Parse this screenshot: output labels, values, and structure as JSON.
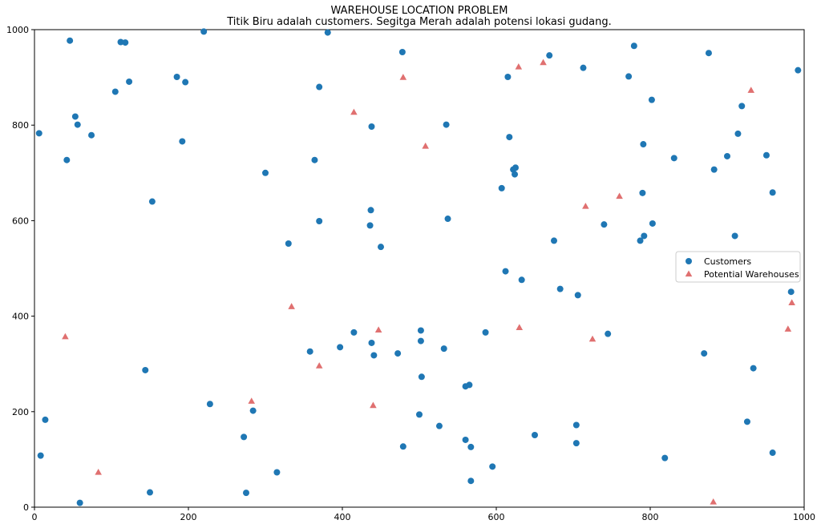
{
  "chart_data": {
    "type": "scatter",
    "title": "WAREHOUSE LOCATION PROBLEM",
    "subtitle": "Titik Biru adalah customers. Segitga Merah adalah potensi lokasi gudang.",
    "xlabel": "",
    "ylabel": "",
    "xlim": [
      0,
      1000
    ],
    "ylim": [
      0,
      1000
    ],
    "xticks": [
      "0",
      "200",
      "400",
      "600",
      "800",
      "1000"
    ],
    "yticks": [
      "0",
      "200",
      "400",
      "600",
      "800",
      "1000"
    ],
    "grid": false,
    "legend_position": "center-right",
    "series": [
      {
        "name": "Customers",
        "marker": "circle",
        "color": "#1f77b4",
        "points": [
          [
            8,
            108
          ],
          [
            14,
            183
          ],
          [
            6,
            783
          ],
          [
            46,
            977
          ],
          [
            42,
            727
          ],
          [
            53,
            818
          ],
          [
            56,
            801
          ],
          [
            74,
            779
          ],
          [
            59,
            9
          ],
          [
            105,
            870
          ],
          [
            112,
            974
          ],
          [
            118,
            973
          ],
          [
            123,
            891
          ],
          [
            144,
            287
          ],
          [
            150,
            31
          ],
          [
            153,
            640
          ],
          [
            185,
            901
          ],
          [
            192,
            766
          ],
          [
            196,
            890
          ],
          [
            220,
            996
          ],
          [
            228,
            216
          ],
          [
            272,
            147
          ],
          [
            275,
            30
          ],
          [
            284,
            202
          ],
          [
            300,
            700
          ],
          [
            315,
            73
          ],
          [
            330,
            552
          ],
          [
            358,
            326
          ],
          [
            364,
            727
          ],
          [
            370,
            599
          ],
          [
            370,
            880
          ],
          [
            381,
            994
          ],
          [
            397,
            335
          ],
          [
            415,
            366
          ],
          [
            436,
            590
          ],
          [
            437,
            622
          ],
          [
            438,
            344
          ],
          [
            438,
            797
          ],
          [
            441,
            318
          ],
          [
            450,
            545
          ],
          [
            472,
            322
          ],
          [
            478,
            953
          ],
          [
            479,
            127
          ],
          [
            500,
            194
          ],
          [
            502,
            370
          ],
          [
            502,
            348
          ],
          [
            503,
            273
          ],
          [
            526,
            170
          ],
          [
            532,
            332
          ],
          [
            535,
            801
          ],
          [
            537,
            604
          ],
          [
            560,
            141
          ],
          [
            560,
            253
          ],
          [
            565,
            256
          ],
          [
            567,
            126
          ],
          [
            567,
            55
          ],
          [
            586,
            366
          ],
          [
            595,
            85
          ],
          [
            607,
            668
          ],
          [
            612,
            494
          ],
          [
            615,
            901
          ],
          [
            617,
            775
          ],
          [
            622,
            707
          ],
          [
            625,
            711
          ],
          [
            624,
            697
          ],
          [
            633,
            476
          ],
          [
            650,
            151
          ],
          [
            669,
            946
          ],
          [
            675,
            558
          ],
          [
            683,
            457
          ],
          [
            704,
            172
          ],
          [
            704,
            134
          ],
          [
            706,
            444
          ],
          [
            713,
            920
          ],
          [
            740,
            592
          ],
          [
            745,
            363
          ],
          [
            772,
            902
          ],
          [
            779,
            966
          ],
          [
            787,
            558
          ],
          [
            790,
            658
          ],
          [
            791,
            760
          ],
          [
            792,
            568
          ],
          [
            802,
            853
          ],
          [
            803,
            594
          ],
          [
            819,
            103
          ],
          [
            831,
            731
          ],
          [
            870,
            322
          ],
          [
            876,
            951
          ],
          [
            883,
            707
          ],
          [
            900,
            735
          ],
          [
            910,
            568
          ],
          [
            914,
            782
          ],
          [
            919,
            840
          ],
          [
            926,
            179
          ],
          [
            934,
            291
          ],
          [
            951,
            737
          ],
          [
            959,
            659
          ],
          [
            959,
            114
          ],
          [
            983,
            451
          ],
          [
            992,
            915
          ]
        ]
      },
      {
        "name": "Potential Warehouses",
        "marker": "triangle",
        "color": "#e07070",
        "points": [
          [
            40,
            357
          ],
          [
            83,
            73
          ],
          [
            282,
            222
          ],
          [
            334,
            420
          ],
          [
            370,
            296
          ],
          [
            415,
            827
          ],
          [
            440,
            213
          ],
          [
            447,
            371
          ],
          [
            479,
            900
          ],
          [
            508,
            756
          ],
          [
            629,
            922
          ],
          [
            630,
            376
          ],
          [
            661,
            931
          ],
          [
            716,
            630
          ],
          [
            725,
            352
          ],
          [
            760,
            651
          ],
          [
            882,
            11
          ],
          [
            931,
            873
          ],
          [
            979,
            373
          ],
          [
            984,
            428
          ]
        ]
      }
    ]
  }
}
